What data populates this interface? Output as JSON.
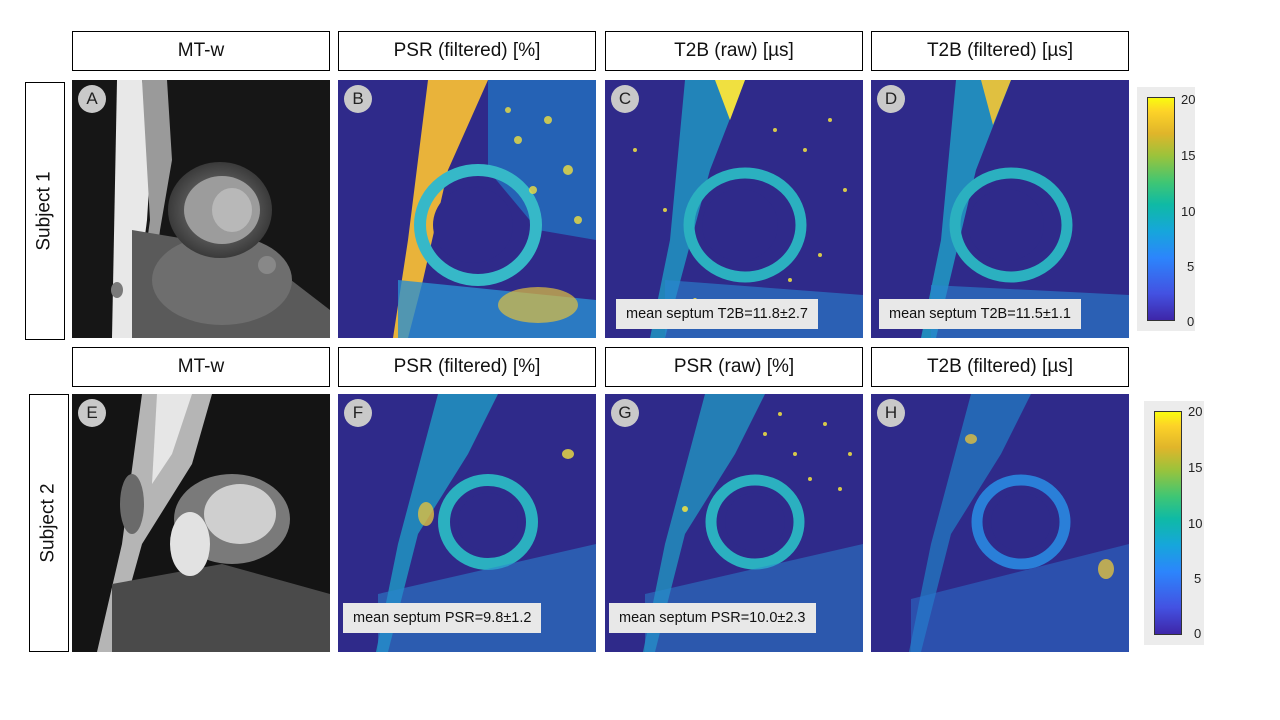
{
  "row1": {
    "label": "Subject 1",
    "headers": [
      "MT-w",
      "PSR (filtered) [%]",
      "T2B (raw) [µs]",
      "T2B (filtered) [µs]"
    ],
    "panels": [
      {
        "letter": "A",
        "kind": "grayscale",
        "annotation": ""
      },
      {
        "letter": "B",
        "kind": "parametric-map",
        "annotation": ""
      },
      {
        "letter": "C",
        "kind": "parametric-map-raw",
        "annotation": "mean septum T2B=11.8±2.7"
      },
      {
        "letter": "D",
        "kind": "parametric-map",
        "annotation": "mean septum T2B=11.5±1.1"
      }
    ],
    "colorbar": {
      "ticks": [
        "20",
        "15",
        "10",
        "5",
        "0"
      ]
    }
  },
  "row2": {
    "label": "Subject 2",
    "headers": [
      "MT-w",
      "PSR (filtered) [%]",
      "PSR (raw) [%]",
      "T2B (filtered) [µs]"
    ],
    "panels": [
      {
        "letter": "E",
        "kind": "grayscale",
        "annotation": ""
      },
      {
        "letter": "F",
        "kind": "parametric-map",
        "annotation": "mean septum PSR=9.8±1.2"
      },
      {
        "letter": "G",
        "kind": "parametric-map-raw",
        "annotation": "mean septum PSR=10.0±2.3"
      },
      {
        "letter": "H",
        "kind": "parametric-map",
        "annotation": ""
      }
    ],
    "colorbar": {
      "ticks": [
        "20",
        "15",
        "10",
        "5",
        "0"
      ]
    }
  },
  "colormap": {
    "low": "#3e26a8",
    "mid": "#16a6db",
    "high": "#f9fb0e",
    "background": "#2b1f7a"
  }
}
